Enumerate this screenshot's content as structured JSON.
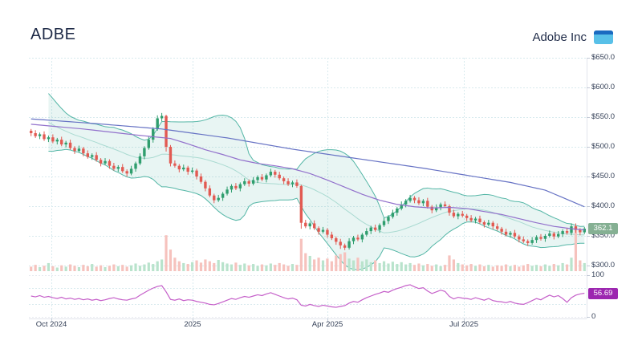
{
  "header": {
    "symbol": "ADBE",
    "company": "Adobe Inc",
    "logo_icon": "blue-window-icon"
  },
  "badges": {
    "last_price": "362.1",
    "rsi_value": "56.69"
  },
  "colors": {
    "up": "#2f9e6e",
    "down": "#e25a52",
    "vol_up": "#b9e3cc",
    "vol_down": "#f6c2bd",
    "boll_line": "#54b6a6",
    "boll_fill": "rgba(81,181,165,0.13)",
    "boll_basis": "#a9dad1",
    "ma_blue": "#6672c4",
    "ma_purple": "#9271cc",
    "rsi_line": "#c55fc9",
    "rsi_badge": "#9c27b0",
    "price_badge": "#85b093",
    "grid": "#d8eaee",
    "grid_gray": "#e7eaf0",
    "axis_border": "#e2e5ec",
    "tick": "#c2c9d6",
    "text": "#333f56",
    "title": "#1e2a47"
  },
  "chart_data": {
    "type": "candlestick",
    "title": "ADBE",
    "y_axis": {
      "min": 300,
      "max": 650,
      "tick_step": 50,
      "labels": [
        {
          "text": "$650.0",
          "price": 650
        },
        {
          "text": "$600.0",
          "price": 600
        },
        {
          "text": "$550.0",
          "price": 550
        },
        {
          "text": "$500.0",
          "price": 500
        },
        {
          "text": "$450.0",
          "price": 450
        },
        {
          "text": "$400.0",
          "price": 400
        },
        {
          "text": "$350.0",
          "price": 350
        },
        {
          "text": "$300.0",
          "price": 300
        }
      ]
    },
    "x_axis": {
      "labels": [
        {
          "text": "Oct 2024",
          "pos": 0.0403
        },
        {
          "text": "2025",
          "pos": 0.2935
        },
        {
          "text": "Apr 2025",
          "pos": 0.5353
        },
        {
          "text": "Jul 2025",
          "pos": 0.7799
        }
      ]
    },
    "rsi_axis": {
      "min": 0,
      "max": 100,
      "gridlines": [
        70,
        30
      ],
      "labels": [
        {
          "text": "100",
          "value": 100
        },
        {
          "text": "0",
          "value": 0
        }
      ]
    },
    "last_price": 362.1,
    "rsi_last": 56.69,
    "bollinger": {
      "window": 20,
      "mult": 2
    },
    "pre_closes": [
      592,
      587,
      580,
      571,
      562,
      553,
      545,
      538,
      541,
      534,
      529,
      535,
      527,
      521,
      517
    ],
    "candles_ohlc": [
      [
        527,
        530,
        518,
        523
      ],
      [
        523,
        528,
        515,
        518
      ],
      [
        518,
        524,
        513,
        521
      ],
      [
        521,
        526,
        510,
        513
      ],
      [
        513,
        519,
        508,
        516
      ],
      [
        516,
        521,
        506,
        509
      ],
      [
        509,
        515,
        504,
        512
      ],
      [
        512,
        517,
        501,
        504
      ],
      [
        504,
        510,
        499,
        507
      ],
      [
        507,
        512,
        495,
        498
      ],
      [
        498,
        501,
        488,
        493
      ],
      [
        493,
        502,
        490,
        497
      ],
      [
        497,
        500,
        484,
        489
      ],
      [
        489,
        494,
        480,
        483
      ],
      [
        483,
        489,
        478,
        486
      ],
      [
        486,
        491,
        475,
        478
      ],
      [
        478,
        481,
        467,
        472
      ],
      [
        472,
        481,
        469,
        476
      ],
      [
        476,
        479,
        463,
        468
      ],
      [
        468,
        473,
        460,
        463
      ],
      [
        463,
        469,
        458,
        466
      ],
      [
        466,
        471,
        456,
        459
      ],
      [
        459,
        462,
        450,
        455
      ],
      [
        455,
        468,
        452,
        463
      ],
      [
        463,
        475,
        458,
        472
      ],
      [
        472,
        489,
        469,
        484
      ],
      [
        484,
        501,
        479,
        498
      ],
      [
        498,
        517,
        495,
        512
      ],
      [
        512,
        533,
        507,
        530
      ],
      [
        530,
        553,
        527,
        548
      ],
      [
        548,
        557,
        543,
        552
      ],
      [
        552,
        554,
        492,
        500
      ],
      [
        500,
        503,
        467,
        472
      ],
      [
        472,
        477,
        465,
        468
      ],
      [
        468,
        471,
        457,
        462
      ],
      [
        462,
        470,
        459,
        465
      ],
      [
        465,
        468,
        453,
        458
      ],
      [
        458,
        465,
        455,
        460
      ],
      [
        460,
        463,
        445,
        450
      ],
      [
        450,
        455,
        438,
        441
      ],
      [
        441,
        444,
        425,
        430
      ],
      [
        430,
        435,
        415,
        418
      ],
      [
        418,
        421,
        405,
        410
      ],
      [
        410,
        419,
        407,
        414
      ],
      [
        414,
        424,
        409,
        421
      ],
      [
        421,
        433,
        418,
        428
      ],
      [
        428,
        437,
        423,
        434
      ],
      [
        434,
        439,
        427,
        430
      ],
      [
        430,
        440,
        425,
        437
      ],
      [
        437,
        447,
        434,
        442
      ],
      [
        442,
        445,
        433,
        438
      ],
      [
        438,
        449,
        435,
        444
      ],
      [
        444,
        452,
        439,
        449
      ],
      [
        449,
        454,
        442,
        445
      ],
      [
        445,
        455,
        440,
        452
      ],
      [
        452,
        463,
        449,
        458
      ],
      [
        458,
        461,
        448,
        453
      ],
      [
        453,
        458,
        444,
        447
      ],
      [
        447,
        450,
        437,
        442
      ],
      [
        442,
        447,
        434,
        437
      ],
      [
        437,
        443,
        432,
        440
      ],
      [
        440,
        445,
        431,
        434
      ],
      [
        434,
        436,
        362,
        372
      ],
      [
        372,
        377,
        363,
        366
      ],
      [
        366,
        374,
        361,
        371
      ],
      [
        371,
        376,
        360,
        363
      ],
      [
        363,
        366,
        352,
        357
      ],
      [
        357,
        365,
        354,
        360
      ],
      [
        360,
        363,
        347,
        352
      ],
      [
        352,
        357,
        343,
        346
      ],
      [
        346,
        349,
        335,
        340
      ],
      [
        340,
        345,
        328,
        334
      ],
      [
        334,
        337,
        326,
        330
      ],
      [
        330,
        346,
        327,
        341
      ],
      [
        341,
        350,
        336,
        347
      ],
      [
        347,
        352,
        341,
        344
      ],
      [
        344,
        355,
        339,
        352
      ],
      [
        352,
        363,
        349,
        358
      ],
      [
        358,
        367,
        353,
        364
      ],
      [
        364,
        369,
        357,
        360
      ],
      [
        360,
        371,
        355,
        368
      ],
      [
        368,
        380,
        365,
        375
      ],
      [
        375,
        385,
        370,
        382
      ],
      [
        382,
        394,
        379,
        389
      ],
      [
        389,
        399,
        384,
        396
      ],
      [
        396,
        408,
        393,
        403
      ],
      [
        403,
        412,
        398,
        409
      ],
      [
        409,
        419,
        406,
        414
      ],
      [
        414,
        417,
        405,
        410
      ],
      [
        410,
        415,
        402,
        405
      ],
      [
        405,
        412,
        400,
        409
      ],
      [
        409,
        414,
        396,
        399
      ],
      [
        399,
        402,
        388,
        393
      ],
      [
        393,
        403,
        390,
        398
      ],
      [
        398,
        406,
        393,
        403
      ],
      [
        403,
        408,
        397,
        400
      ],
      [
        400,
        403,
        384,
        389
      ],
      [
        389,
        394,
        380,
        383
      ],
      [
        383,
        390,
        378,
        387
      ],
      [
        387,
        392,
        381,
        384
      ],
      [
        384,
        387,
        375,
        380
      ],
      [
        380,
        385,
        373,
        376
      ],
      [
        376,
        382,
        371,
        379
      ],
      [
        379,
        384,
        370,
        373
      ],
      [
        373,
        376,
        364,
        369
      ],
      [
        369,
        377,
        366,
        372
      ],
      [
        372,
        375,
        361,
        366
      ],
      [
        366,
        371,
        359,
        362
      ],
      [
        362,
        365,
        352,
        357
      ],
      [
        357,
        362,
        349,
        352
      ],
      [
        352,
        358,
        347,
        355
      ],
      [
        355,
        360,
        346,
        349
      ],
      [
        349,
        352,
        339,
        344
      ],
      [
        344,
        349,
        338,
        341
      ],
      [
        341,
        344,
        333,
        338
      ],
      [
        338,
        348,
        335,
        343
      ],
      [
        343,
        351,
        338,
        348
      ],
      [
        348,
        353,
        342,
        345
      ],
      [
        345,
        353,
        340,
        350
      ],
      [
        350,
        359,
        347,
        354
      ],
      [
        354,
        357,
        344,
        349
      ],
      [
        349,
        358,
        346,
        353
      ],
      [
        353,
        361,
        348,
        358
      ],
      [
        358,
        363,
        352,
        355
      ],
      [
        355,
        371,
        351,
        366
      ],
      [
        366,
        371,
        355,
        360
      ],
      [
        360,
        363,
        351,
        356
      ],
      [
        356,
        365,
        353,
        362.1
      ]
    ],
    "volume": [
      10,
      14,
      9,
      12,
      18,
      11,
      8,
      13,
      10,
      15,
      12,
      9,
      14,
      11,
      16,
      10,
      13,
      9,
      12,
      15,
      11,
      14,
      10,
      13,
      17,
      12,
      15,
      19,
      16,
      22,
      26,
      80,
      48,
      30,
      22,
      18,
      16,
      20,
      24,
      19,
      26,
      22,
      18,
      25,
      20,
      17,
      15,
      19,
      14,
      17,
      13,
      16,
      12,
      15,
      13,
      17,
      14,
      18,
      15,
      12,
      16,
      14,
      72,
      40,
      34,
      26,
      30,
      24,
      28,
      22,
      35,
      38,
      42,
      28,
      24,
      30,
      22,
      26,
      20,
      24,
      18,
      22,
      17,
      21,
      16,
      20,
      15,
      18,
      14,
      17,
      13,
      16,
      12,
      15,
      11,
      14,
      35,
      26,
      18,
      15,
      13,
      16,
      12,
      15,
      11,
      14,
      10,
      13,
      12,
      15,
      11,
      14,
      10,
      13,
      16,
      12,
      14,
      11,
      15,
      12,
      16,
      13,
      18,
      15,
      30,
      100,
      24,
      18
    ],
    "rsi": [
      50,
      48,
      51,
      47,
      49,
      46,
      44,
      47,
      43,
      45,
      42,
      44,
      41,
      43,
      40,
      42,
      39,
      41,
      44,
      46,
      43,
      41,
      40,
      43,
      45,
      52,
      58,
      64,
      69,
      73,
      75,
      60,
      42,
      40,
      43,
      39,
      41,
      40,
      37,
      35,
      33,
      30,
      29,
      32,
      36,
      40,
      44,
      42,
      46,
      49,
      47,
      50,
      53,
      51,
      55,
      58,
      54,
      50,
      46,
      43,
      45,
      41,
      28,
      26,
      30,
      27,
      25,
      28,
      26,
      24,
      23,
      25,
      27,
      33,
      37,
      35,
      41,
      46,
      50,
      54,
      57,
      61,
      59,
      64,
      68,
      71,
      75,
      77,
      72,
      68,
      70,
      62,
      56,
      60,
      64,
      61,
      49,
      43,
      47,
      45,
      44,
      42,
      46,
      43,
      40,
      44,
      39,
      37,
      36,
      34,
      37,
      33,
      31,
      30,
      34,
      39,
      44,
      41,
      47,
      52,
      48,
      51,
      44,
      35,
      46,
      52,
      55,
      56.69
    ],
    "ma_blue": [
      [
        0,
        547
      ],
      [
        15,
        539
      ],
      [
        30,
        530
      ],
      [
        45,
        515
      ],
      [
        60,
        496
      ],
      [
        75,
        480
      ],
      [
        90,
        464
      ],
      [
        100,
        452
      ],
      [
        110,
        440
      ],
      [
        118,
        427
      ],
      [
        127,
        399
      ]
    ],
    "ma_purple": [
      [
        0,
        538
      ],
      [
        12,
        530
      ],
      [
        24,
        520
      ],
      [
        32,
        514
      ],
      [
        36,
        505
      ],
      [
        40,
        495
      ],
      [
        44,
        487
      ],
      [
        48,
        478
      ],
      [
        52,
        472
      ],
      [
        56,
        468
      ],
      [
        60,
        463
      ],
      [
        64,
        455
      ],
      [
        68,
        444
      ],
      [
        72,
        432
      ],
      [
        76,
        420
      ],
      [
        80,
        410
      ],
      [
        84,
        403
      ],
      [
        88,
        399
      ],
      [
        92,
        397
      ],
      [
        96,
        398
      ],
      [
        100,
        396
      ],
      [
        104,
        391
      ],
      [
        108,
        386
      ],
      [
        112,
        379
      ],
      [
        116,
        372
      ],
      [
        120,
        366
      ],
      [
        124,
        362
      ],
      [
        127,
        360
      ]
    ]
  }
}
